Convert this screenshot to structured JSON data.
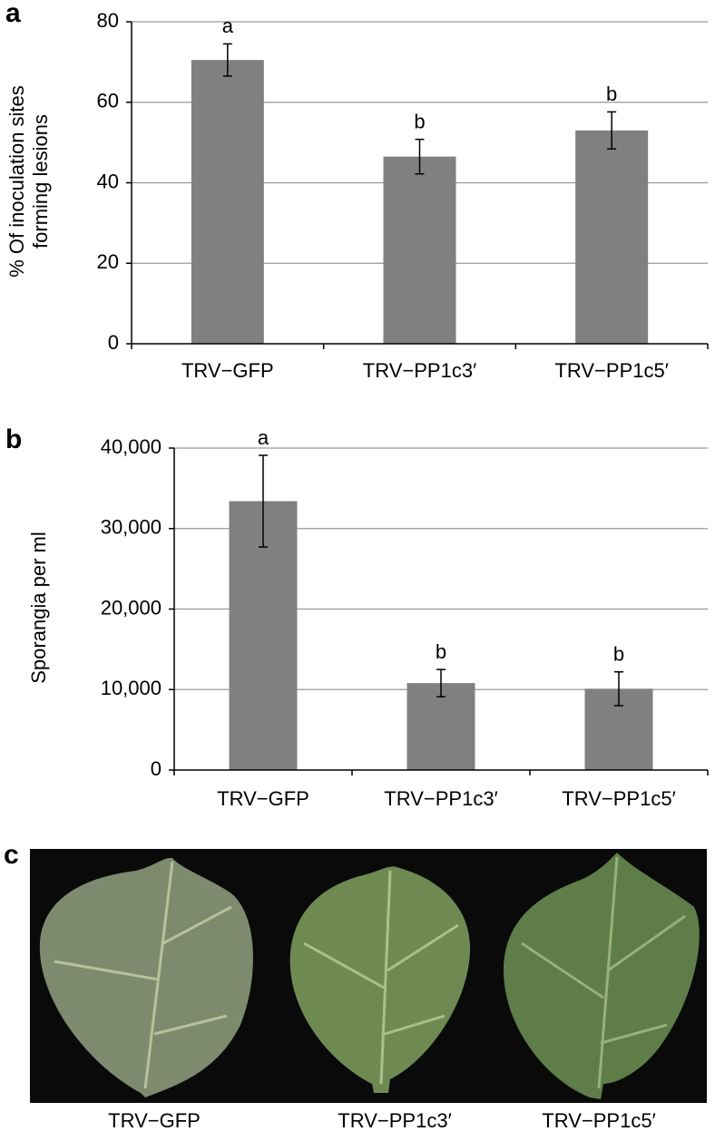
{
  "chart_data": [
    {
      "type": "bar",
      "panel_label": "a",
      "ylabel": [
        "% Of inoculation sites",
        "forming lesions"
      ],
      "categories": [
        "TRV−GFP",
        "TRV−PP1c3′",
        "TRV−PP1c5′"
      ],
      "values": [
        70.5,
        46.5,
        53
      ],
      "errors": [
        4,
        4.3,
        4.6
      ],
      "annotations": [
        "a",
        "b",
        "b"
      ],
      "color": "#808080",
      "ylim": [
        0,
        80
      ],
      "yticks": [
        0,
        20,
        40,
        60,
        80
      ],
      "grid": true
    },
    {
      "type": "bar",
      "panel_label": "b",
      "ylabel": [
        "Sporangia per ml"
      ],
      "categories": [
        "TRV−GFP",
        "TRV−PP1c3′",
        "TRV−PP1c5′"
      ],
      "values": [
        33400,
        10800,
        10100
      ],
      "errors": [
        5700,
        1700,
        2100
      ],
      "annotations": [
        "a",
        "b",
        "b"
      ],
      "color": "#808080",
      "ylim": [
        0,
        40000
      ],
      "yticks": [
        0,
        {
          "value": 10000,
          "label": "10,000"
        },
        {
          "value": 20000,
          "label": "20,000"
        },
        {
          "value": 30000,
          "label": "30,000"
        },
        {
          "value": 40000,
          "label": "40,000"
        }
      ],
      "grid": true
    }
  ],
  "photo": {
    "panel_label": "c",
    "labels": [
      "TRV−GFP",
      "TRV−PP1c3′",
      "TRV−PP1c5′"
    ]
  }
}
